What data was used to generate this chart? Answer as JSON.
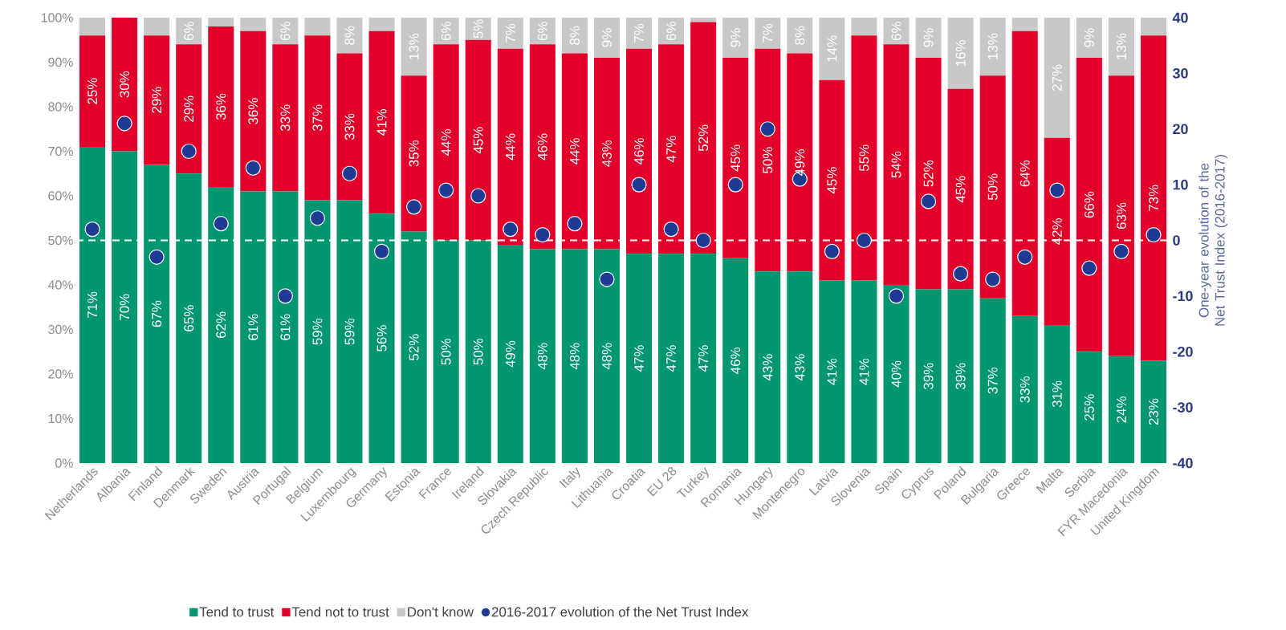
{
  "chart_data": {
    "type": "bar",
    "stacked": true,
    "legend": "bottom",
    "categories": [
      "Netherlands",
      "Albania",
      "Finland",
      "Denmark",
      "Sweden",
      "Austria",
      "Portugal",
      "Belgium",
      "Luxembourg",
      "Germany",
      "Estonia",
      "France",
      "Ireland",
      "Slovakia",
      "Czech Republic",
      "Italy",
      "Lithuania",
      "Croatia",
      "EU 28",
      "Turkey",
      "Romania",
      "Hungary",
      "Montenegro",
      "Latvia",
      "Slovenia",
      "Spain",
      "Cyprus",
      "Poland",
      "Bulgaria",
      "Greece",
      "Malta",
      "Serbia",
      "FYR Macedonia",
      "United Kingdom"
    ],
    "series": [
      {
        "name": "Tend to trust",
        "color": "#009670",
        "values": [
          71,
          70,
          67,
          65,
          62,
          61,
          61,
          59,
          59,
          56,
          52,
          50,
          50,
          49,
          48,
          48,
          48,
          47,
          47,
          47,
          46,
          43,
          43,
          41,
          41,
          40,
          39,
          39,
          37,
          33,
          31,
          25,
          24,
          23
        ],
        "value_labels": [
          "71%",
          "70%",
          "67%",
          "65%",
          "62%",
          "61%",
          "61%",
          "59%",
          "59%",
          "56%",
          "52%",
          "50%",
          "50%",
          "49%",
          "48%",
          "48%",
          "48%",
          "47%",
          "47%",
          "47%",
          "46%",
          "43%",
          "43%",
          "41%",
          "41%",
          "40%",
          "39%",
          "39%",
          "37%",
          "33%",
          "31%",
          "25%",
          "24%",
          "23%"
        ]
      },
      {
        "name": "Tend not to trust",
        "color": "#e2002a",
        "values": [
          25,
          30,
          29,
          29,
          36,
          36,
          33,
          37,
          33,
          41,
          35,
          44,
          45,
          44,
          46,
          44,
          43,
          46,
          47,
          52,
          45,
          50,
          49,
          45,
          55,
          54,
          52,
          45,
          50,
          64,
          42,
          66,
          63,
          73
        ],
        "value_labels": [
          "25%",
          "30%",
          "29%",
          "29%",
          "36%",
          "36%",
          "33%",
          "37%",
          "33%",
          "41%",
          "35%",
          "44%",
          "45%",
          "44%",
          "46%",
          "44%",
          "43%",
          "46%",
          "47%",
          "52%",
          "45%",
          "50%",
          "49%",
          "45%",
          "55%",
          "54%",
          "52%",
          "45%",
          "50%",
          "64%",
          "42%",
          "66%",
          "63%",
          "73%"
        ]
      },
      {
        "name": "Don't know",
        "color": "#c8c8c8",
        "values": [
          4,
          0,
          4,
          6,
          2,
          3,
          6,
          4,
          8,
          3,
          13,
          6,
          5,
          7,
          6,
          8,
          9,
          7,
          6,
          1,
          9,
          7,
          8,
          14,
          4,
          6,
          9,
          16,
          13,
          3,
          27,
          9,
          13,
          4
        ],
        "value_labels": [
          null,
          null,
          null,
          "6%",
          null,
          null,
          "6%",
          null,
          "8%",
          null,
          "13%",
          "6%",
          "5%",
          "7%",
          "6%",
          "8%",
          "9%",
          "7%",
          "6%",
          null,
          "9%",
          "7%",
          "8%",
          "14%",
          null,
          "6%",
          "9%",
          "16%",
          "13%",
          null,
          "27%",
          "9%",
          "13%",
          null
        ]
      },
      {
        "name": "2016-2017 evolution of the Net Trust Index",
        "type": "scatter",
        "axis": "y2",
        "marker": "circle",
        "color": "#1f3a93",
        "values": [
          2,
          21,
          -3,
          16,
          3,
          13,
          -10,
          4,
          12,
          -2,
          6,
          9,
          8,
          2,
          1,
          3,
          -7,
          10,
          2,
          0,
          10,
          20,
          11,
          -2,
          0,
          -10,
          7,
          -6,
          -7,
          -3,
          9,
          -5,
          -2,
          1
        ]
      }
    ],
    "ylim": [
      0,
      100
    ],
    "yticks": [
      {
        "value": 0,
        "label": "0%"
      },
      {
        "value": 10,
        "label": "10%"
      },
      {
        "value": 20,
        "label": "20%"
      },
      {
        "value": 30,
        "label": "30%"
      },
      {
        "value": 40,
        "label": "40%"
      },
      {
        "value": 50,
        "label": "50%"
      },
      {
        "value": 60,
        "label": "60%"
      },
      {
        "value": 70,
        "label": "70%"
      },
      {
        "value": 80,
        "label": "80%"
      },
      {
        "value": 90,
        "label": "90%"
      },
      {
        "value": 100,
        "label": "100%"
      }
    ],
    "y2lim": [
      -40,
      40
    ],
    "y2ticks": [
      -40,
      -30,
      -20,
      -10,
      0,
      10,
      20,
      30,
      40
    ],
    "y2label": "One-year evolution of the Net Trust Index (2016-2017)",
    "ref_lines": [
      {
        "axis": "y2",
        "value": 0,
        "color": "#ffffff",
        "line_style": "dashed"
      }
    ]
  }
}
